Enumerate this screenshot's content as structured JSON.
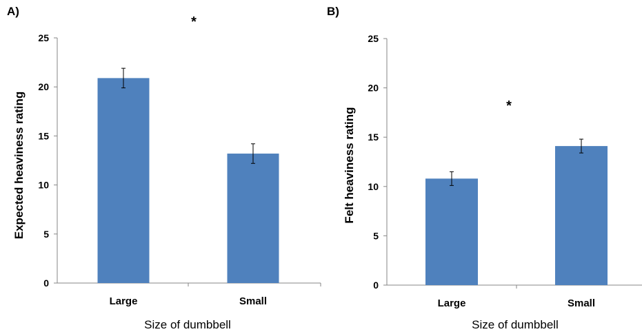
{
  "chart_data": [
    {
      "type": "bar",
      "panel_label": "A)",
      "categories": [
        "Large",
        "Small"
      ],
      "values": [
        20.9,
        13.2
      ],
      "errors": [
        1.0,
        1.0
      ],
      "xlabel": "Size of dumbbell",
      "ylabel": "Expected heaviness rating",
      "ylim": [
        0,
        25
      ],
      "yticks": [
        "0",
        "5",
        "10",
        "15",
        "20",
        "25"
      ],
      "significance": "*",
      "bar_color": "#4f81bd",
      "grid": false
    },
    {
      "type": "bar",
      "panel_label": "B)",
      "categories": [
        "Large",
        "Small"
      ],
      "values": [
        10.8,
        14.1
      ],
      "errors": [
        0.7,
        0.7
      ],
      "xlabel": "Size of dumbbell",
      "ylabel": "Felt heaviness rating",
      "ylim": [
        0,
        25
      ],
      "yticks": [
        "0",
        "5",
        "10",
        "15",
        "20",
        "25"
      ],
      "significance": "*",
      "bar_color": "#4f81bd",
      "grid": false
    }
  ]
}
